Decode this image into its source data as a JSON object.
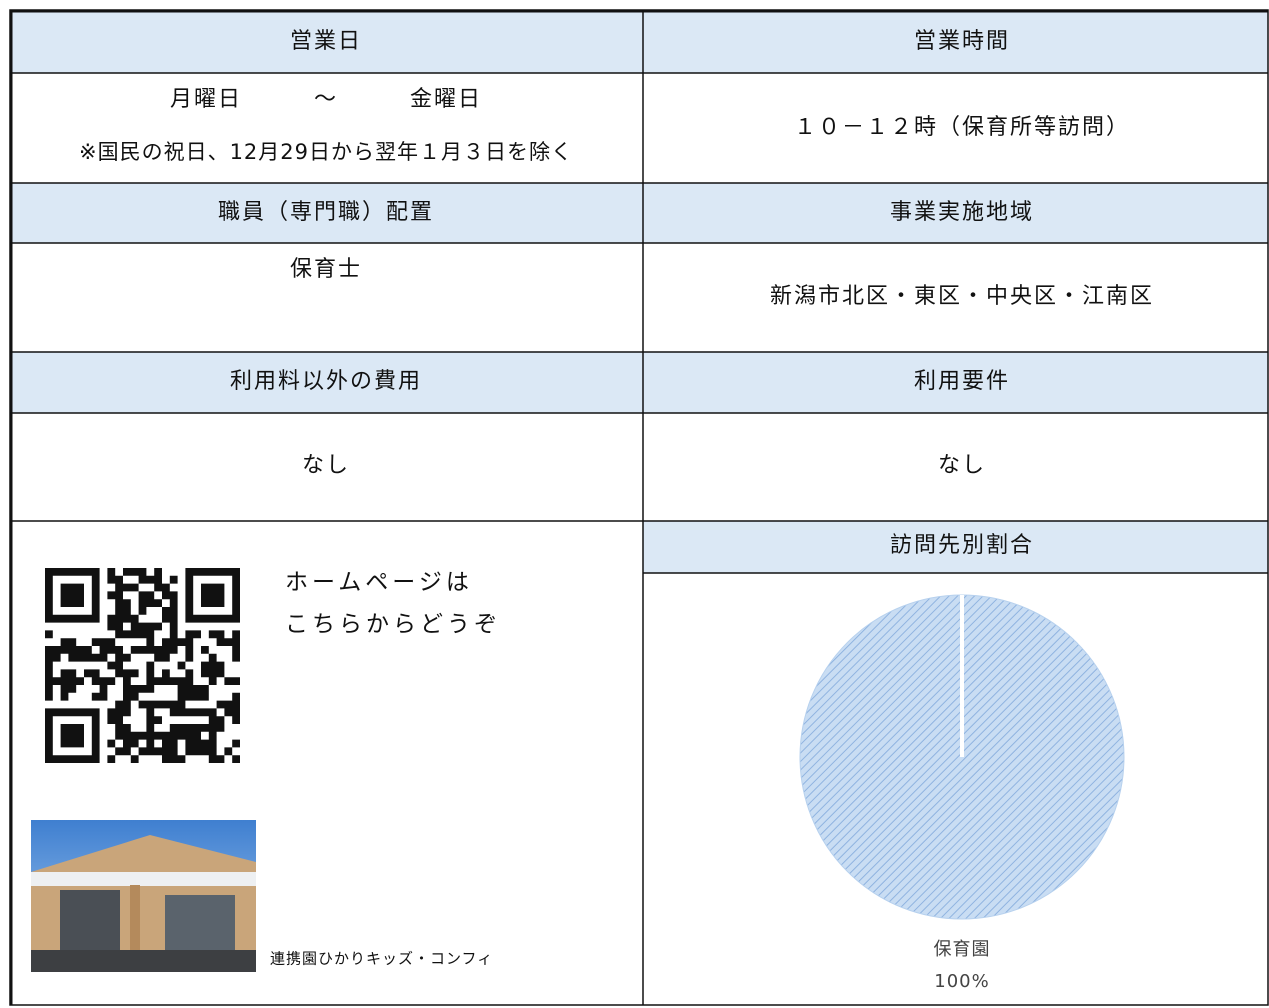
{
  "table": {
    "rows": [
      [
        "営業日",
        "営業時間"
      ],
      [
        [
          "月曜日　　　～　　　金曜日",
          "※国民の祝日、12月29日から翌年１月３日を除く"
        ],
        [
          "１０－１２時（保育所等訪問）"
        ]
      ],
      [
        "職員（専門職）配置",
        "事業実施地域"
      ],
      [
        [
          "保育士"
        ],
        [
          "新潟市北区・東区・中央区・江南区"
        ]
      ],
      [
        "利用料以外の費用",
        "利用要件"
      ],
      [
        [
          "なし"
        ],
        [
          "なし"
        ]
      ]
    ]
  },
  "homepage": {
    "text": [
      "ホームページは",
      "こちらからどうぞ"
    ],
    "photo_caption": "連携園ひかりキッズ・コンフィ"
  },
  "pie": {
    "type": "pie",
    "title": "訪問先別割合",
    "categories": [
      "保育園"
    ],
    "values": [
      100
    ],
    "value_labels": [
      "100%"
    ],
    "color": "#b7d1ee"
  }
}
